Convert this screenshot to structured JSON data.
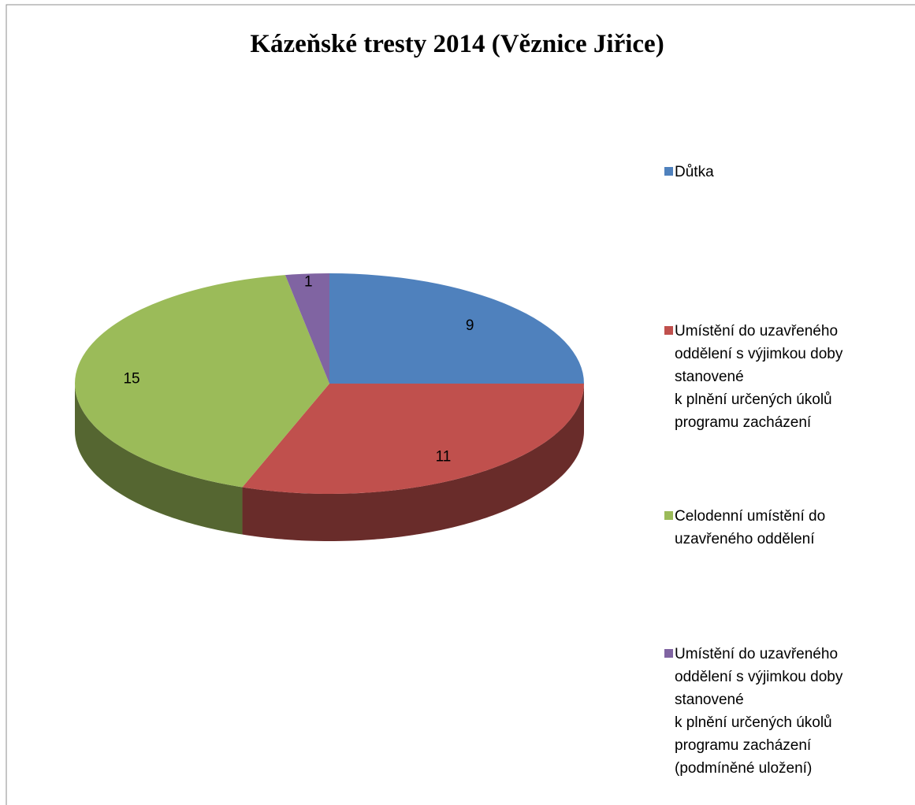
{
  "chart_data": {
    "type": "pie3d",
    "title": "Kázeňské tresty 2014 (Věznice Jiřice)",
    "categories": [
      "Důtka",
      "Umístění do uzavřeného oddělení s výjimkou doby stanovené\nk plnění určených úkolů programu zacházení",
      "Celodenní umístění do uzavřeného oddělení",
      "Umístění do uzavřeného oddělení s výjimkou doby stanovené\nk plnění určených úkolů programu zacházení (podmíněné uložení)"
    ],
    "values": [
      9,
      11,
      15,
      1
    ],
    "colors": [
      "#4f81bd",
      "#c0504d",
      "#9bbb59",
      "#8064a2"
    ],
    "legend": "right"
  }
}
